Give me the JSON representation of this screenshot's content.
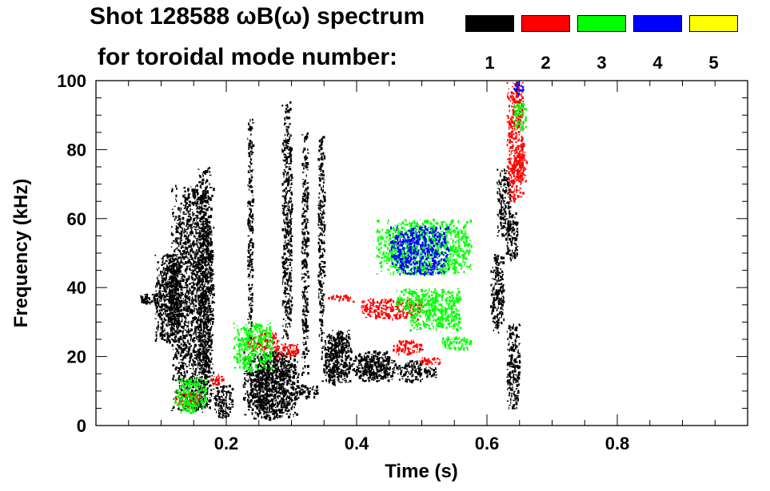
{
  "header": {
    "title_line1": "Shot 128588 ωB(ω) spectrum",
    "title_line2": "for toroidal mode number:"
  },
  "legend": [
    {
      "label": "1",
      "color": "#000000"
    },
    {
      "label": "2",
      "color": "#ff0000"
    },
    {
      "label": "3",
      "color": "#00ff00"
    },
    {
      "label": "4",
      "color": "#0000ff"
    },
    {
      "label": "5",
      "color": "#ffff00"
    }
  ],
  "chart_data": {
    "type": "heatmap",
    "title": "Shot 128588 ωB(ω) spectrum for toroidal mode number",
    "xlabel": "Time (s)",
    "ylabel": "Frequency (kHz)",
    "xlim": [
      0.0,
      1.0
    ],
    "ylim": [
      0,
      100
    ],
    "x_ticks": [
      0.2,
      0.4,
      0.6,
      0.8
    ],
    "x_tick_labels": [
      "0.2",
      "0.4",
      "0.6",
      "0.8"
    ],
    "y_ticks": [
      0,
      20,
      40,
      60,
      80,
      100
    ],
    "y_tick_labels": [
      "0",
      "20",
      "40",
      "60",
      "80",
      "100"
    ],
    "series": [
      {
        "name": "n=1",
        "color": "#000000",
        "regions": [
          {
            "t": [
              0.065,
              0.1
            ],
            "f": [
              35.5,
              38.5
            ]
          },
          {
            "t": [
              0.09,
              0.125
            ],
            "f": [
              24,
              50
            ]
          },
          {
            "t": [
              0.1,
              0.13
            ],
            "f": [
              30,
              48
            ]
          },
          {
            "t": [
              0.115,
              0.18
            ],
            "f": [
              4,
              70
            ]
          },
          {
            "t": [
              0.155,
              0.175
            ],
            "f": [
              5,
              75
            ]
          },
          {
            "t": [
              0.18,
              0.21
            ],
            "f": [
              2,
              12
            ]
          },
          {
            "t": [
              0.225,
              0.31
            ],
            "f": [
              2,
              22
            ]
          },
          {
            "t": [
              0.24,
              0.3
            ],
            "f": [
              4,
              18
            ]
          },
          {
            "t": [
              0.305,
              0.34
            ],
            "f": [
              8,
              12
            ]
          },
          {
            "t": [
              0.285,
              0.3
            ],
            "f": [
              25,
              95
            ]
          },
          {
            "t": [
              0.232,
              0.24
            ],
            "f": [
              25,
              90
            ]
          },
          {
            "t": [
              0.315,
              0.325
            ],
            "f": [
              15,
              85
            ]
          },
          {
            "t": [
              0.34,
              0.35
            ],
            "f": [
              25,
              85
            ]
          },
          {
            "t": [
              0.345,
              0.39
            ],
            "f": [
              12,
              28
            ]
          },
          {
            "t": [
              0.355,
              0.385
            ],
            "f": [
              14,
              26
            ]
          },
          {
            "t": [
              0.39,
              0.46
            ],
            "f": [
              13,
              22
            ]
          },
          {
            "t": [
              0.41,
              0.45
            ],
            "f": [
              14,
              20
            ]
          },
          {
            "t": [
              0.46,
              0.5
            ],
            "f": [
              13,
              19
            ]
          },
          {
            "t": [
              0.49,
              0.525
            ],
            "f": [
              14,
              17
            ]
          },
          {
            "t": [
              0.605,
              0.625
            ],
            "f": [
              27,
              50
            ]
          },
          {
            "t": [
              0.615,
              0.635
            ],
            "f": [
              55,
              75
            ]
          },
          {
            "t": [
              0.628,
              0.647
            ],
            "f": [
              48,
              62
            ]
          },
          {
            "t": [
              0.63,
              0.65
            ],
            "f": [
              5,
              30
            ]
          }
        ]
      },
      {
        "name": "n=2",
        "color": "#ff0000",
        "regions": [
          {
            "t": [
              0.12,
              0.16
            ],
            "f": [
              6,
              10
            ]
          },
          {
            "t": [
              0.175,
              0.195
            ],
            "f": [
              12,
              15
            ]
          },
          {
            "t": [
              0.23,
              0.28
            ],
            "f": [
              22,
              27
            ]
          },
          {
            "t": [
              0.275,
              0.31
            ],
            "f": [
              20,
              24
            ]
          },
          {
            "t": [
              0.355,
              0.395
            ],
            "f": [
              36,
              38
            ]
          },
          {
            "t": [
              0.405,
              0.5
            ],
            "f": [
              31,
              37
            ]
          },
          {
            "t": [
              0.455,
              0.5
            ],
            "f": [
              21,
              25
            ]
          },
          {
            "t": [
              0.49,
              0.53
            ],
            "f": [
              18,
              20
            ]
          },
          {
            "t": [
              0.63,
              0.655
            ],
            "f": [
              65,
              100
            ]
          },
          {
            "t": [
              0.64,
              0.66
            ],
            "f": [
              70,
              82
            ]
          }
        ]
      },
      {
        "name": "n=3",
        "color": "#00ff00",
        "regions": [
          {
            "t": [
              0.43,
              0.575
            ],
            "f": [
              44,
              60
            ]
          },
          {
            "t": [
              0.46,
              0.56
            ],
            "f": [
              33,
              40
            ]
          },
          {
            "t": [
              0.48,
              0.56
            ],
            "f": [
              28,
              34
            ]
          },
          {
            "t": [
              0.53,
              0.575
            ],
            "f": [
              22,
              26
            ]
          },
          {
            "t": [
              0.12,
              0.17
            ],
            "f": [
              4,
              14
            ]
          },
          {
            "t": [
              0.21,
              0.27
            ],
            "f": [
              16,
              30
            ]
          },
          {
            "t": [
              0.64,
              0.66
            ],
            "f": [
              86,
              94
            ]
          }
        ]
      },
      {
        "name": "n=4",
        "color": "#0000ff",
        "regions": [
          {
            "t": [
              0.45,
              0.54
            ],
            "f": [
              44,
              58
            ]
          },
          {
            "t": [
              0.64,
              0.655
            ],
            "f": [
              96,
              100
            ]
          }
        ]
      },
      {
        "name": "n=5",
        "color": "#ffff00",
        "regions": []
      }
    ]
  }
}
